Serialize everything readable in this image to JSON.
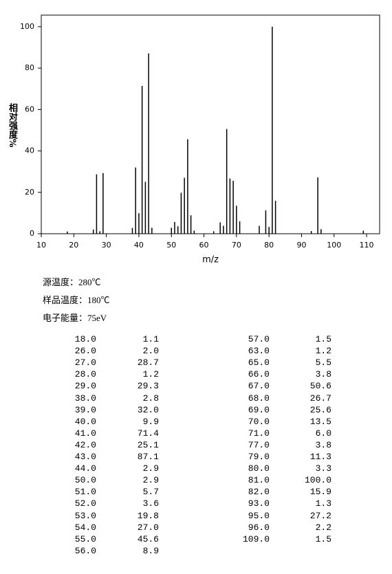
{
  "chart_data": {
    "type": "bar",
    "ylabel": "相对强度%",
    "xlabel": "m/z",
    "x": [
      18,
      26,
      27,
      28,
      29,
      38,
      39,
      40,
      41,
      42,
      43,
      44,
      50,
      51,
      52,
      53,
      54,
      55,
      56,
      57,
      63,
      65,
      66,
      67,
      68,
      69,
      70,
      71,
      77,
      79,
      80,
      81,
      82,
      93,
      95,
      96,
      109
    ],
    "x_labels": [
      "18.0",
      "26.0",
      "27.0",
      "28.0",
      "29.0",
      "38.0",
      "39.0",
      "40.0",
      "41.0",
      "42.0",
      "43.0",
      "44.0",
      "50.0",
      "51.0",
      "52.0",
      "53.0",
      "54.0",
      "55.0",
      "56.0",
      "57.0",
      "63.0",
      "65.0",
      "66.0",
      "67.0",
      "68.0",
      "69.0",
      "70.0",
      "71.0",
      "77.0",
      "79.0",
      "80.0",
      "81.0",
      "82.0",
      "93.0",
      "95.0",
      "96.0",
      "109.0"
    ],
    "values": [
      1.1,
      2.0,
      28.7,
      1.2,
      29.3,
      2.8,
      32.0,
      9.9,
      71.4,
      25.1,
      87.1,
      2.9,
      2.9,
      5.7,
      3.6,
      19.8,
      27.0,
      45.6,
      8.9,
      1.5,
      1.2,
      5.5,
      3.8,
      50.6,
      26.7,
      25.6,
      13.5,
      6.0,
      3.8,
      11.3,
      3.3,
      100.0,
      15.9,
      1.3,
      27.2,
      2.2,
      1.5
    ],
    "value_labels": [
      "1.1",
      "2.0",
      "28.7",
      "1.2",
      "29.3",
      "2.8",
      "32.0",
      "9.9",
      "71.4",
      "25.1",
      "87.1",
      "2.9",
      "2.9",
      "5.7",
      "3.6",
      "19.8",
      "27.0",
      "45.6",
      "8.9",
      "1.5",
      "1.2",
      "5.5",
      "3.8",
      "50.6",
      "26.7",
      "25.6",
      "13.5",
      "6.0",
      "3.8",
      "11.3",
      "3.3",
      "100.0",
      "15.9",
      "1.3",
      "27.2",
      "2.2",
      "1.5"
    ],
    "color": "#000000",
    "xlim": [
      10,
      114
    ],
    "xticks": [
      10,
      20,
      30,
      40,
      50,
      60,
      70,
      80,
      90,
      100,
      110
    ],
    "ylim": [
      0,
      105.6
    ],
    "yticks": [
      0,
      20,
      40,
      60,
      80,
      100
    ]
  },
  "info": [
    "源温度：280℃",
    "样品温度：180℃",
    "电子能量：75eV"
  ]
}
